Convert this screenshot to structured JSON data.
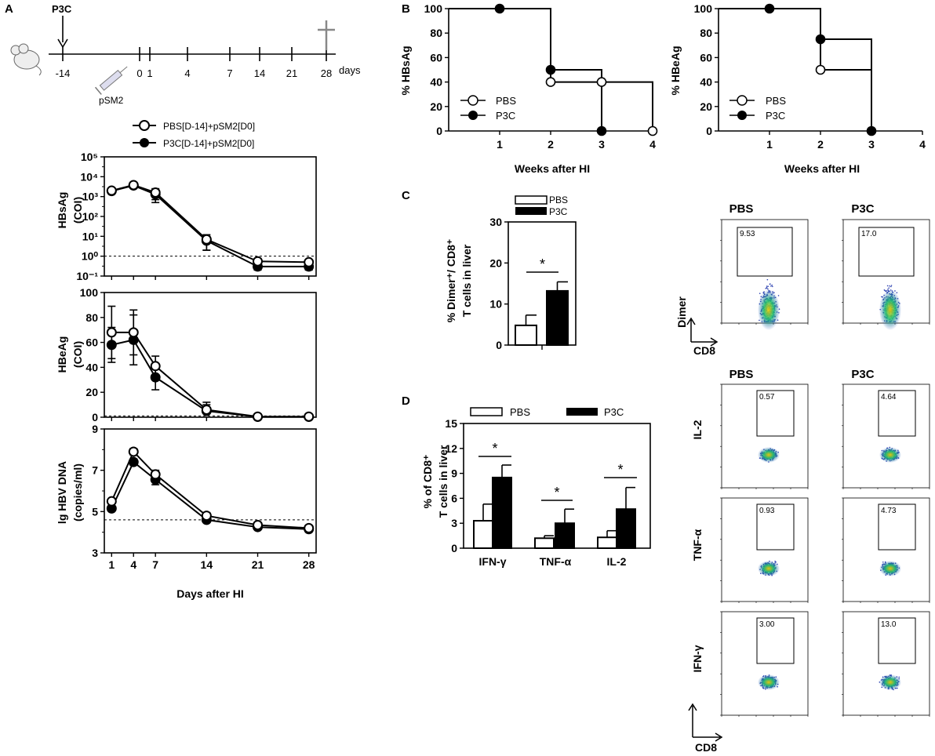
{
  "panels": {
    "A": "A",
    "B": "B",
    "C": "C",
    "D": "D"
  },
  "timeline": {
    "treatment": "P3C",
    "injection": "pSM2",
    "unit": "days",
    "ticks": [
      {
        "label": "-14",
        "day": -14
      },
      {
        "label": "0",
        "day": 0
      },
      {
        "label": "1",
        "day": 1
      },
      {
        "label": "4",
        "day": 4
      },
      {
        "label": "7",
        "day": 7
      },
      {
        "label": "14",
        "day": 14
      },
      {
        "label": "21",
        "day": 21
      },
      {
        "label": "28",
        "day": 28
      }
    ],
    "endpoint_day": 28
  },
  "text": {
    "a_legend_open": "PBS[D-14]+pSM2[D0]",
    "a_legend_filled": "P3C[D-14]+pSM2[D0]",
    "a1_ylabel_1": "HBsAg",
    "a1_ylabel_2": "(COI)",
    "a2_ylabel_1": "HBeAg",
    "a2_ylabel_2": "(COI)",
    "a3_ylabel_1": "lg HBV DNA",
    "a3_ylabel_2": "(copies/ml)",
    "a_xlabel": "Days after HI",
    "b1_ylabel": "% HBsAg",
    "b2_ylabel": "% HBeAg",
    "b_xlabel": "Weeks after HI",
    "legend_pbs": "PBS",
    "legend_p3c": "P3C",
    "c_ylabel_1": "% Dimer⁺/ CD8⁺",
    "c_ylabel_2": "T cells in liver",
    "d_ylabel_1": "% of CD8⁺",
    "d_ylabel_2": "T cells in liver",
    "sig": "*",
    "flow_pbs": "PBS",
    "flow_p3c": "P3C",
    "axis_dimer": "Dimer",
    "axis_cd8": "CD8",
    "axis_il2": "IL-2",
    "axis_tnf": "TNF-α",
    "axis_ifn": "IFN-γ"
  },
  "chart_data": [
    {
      "id": "A1",
      "type": "line",
      "title": "HBsAg (COI)",
      "yscale": "log",
      "x": [
        1,
        4,
        7,
        14,
        21,
        28
      ],
      "xlim": [
        0,
        29
      ],
      "ylim": [
        0.1,
        100000
      ],
      "yticks": [
        "10⁻¹",
        "10⁰",
        "10¹",
        "10²",
        "10³",
        "10⁴",
        "10⁵"
      ],
      "threshold": 1,
      "series": [
        {
          "name": "PBS[D-14]+pSM2[D0]",
          "marker": "open",
          "values": [
            2000,
            3800,
            1600,
            7,
            0.55,
            0.5
          ],
          "err": [
            300,
            500,
            900,
            5,
            0.2,
            0.15
          ]
        },
        {
          "name": "P3C[D-14]+pSM2[D0]",
          "marker": "filled",
          "values": [
            1900,
            3600,
            1300,
            6,
            0.3,
            0.3
          ],
          "err": [
            300,
            400,
            800,
            4,
            0.1,
            0.1
          ]
        }
      ]
    },
    {
      "id": "A2",
      "type": "line",
      "title": "HBeAg (COI)",
      "x": [
        1,
        4,
        7,
        14,
        21,
        28
      ],
      "xlim": [
        0,
        29
      ],
      "ylim": [
        0,
        100
      ],
      "yticks": [
        "0",
        "20",
        "40",
        "60",
        "80",
        "100"
      ],
      "threshold": 1,
      "series": [
        {
          "name": "PBS[D-14]+pSM2[D0]",
          "marker": "open",
          "values": [
            68,
            68,
            41,
            6,
            0.5,
            0.5
          ],
          "err": [
            21,
            18,
            8,
            6,
            0.5,
            0.5
          ]
        },
        {
          "name": "P3C[D-14]+pSM2[D0]",
          "marker": "filled",
          "values": [
            58,
            62,
            32,
            5,
            0.3,
            0.3
          ],
          "err": [
            14,
            20,
            10,
            5,
            0.3,
            0.3
          ]
        }
      ]
    },
    {
      "id": "A3",
      "type": "line",
      "title": "lg HBV DNA (copies/ml)",
      "x": [
        1,
        4,
        7,
        14,
        21,
        28
      ],
      "xlim": [
        0,
        29
      ],
      "ylim": [
        3,
        9
      ],
      "yticks": [
        "3",
        "5",
        "7",
        "9"
      ],
      "xticks": [
        "1",
        "4",
        "7",
        "14",
        "21",
        "28"
      ],
      "threshold": 4.6,
      "series": [
        {
          "name": "PBS[D-14]+pSM2[D0]",
          "marker": "open",
          "values": [
            5.5,
            7.9,
            6.8,
            4.8,
            4.35,
            4.2
          ],
          "err": [
            0.1,
            0.15,
            0.2,
            0.15,
            0.1,
            0.08
          ]
        },
        {
          "name": "P3C[D-14]+pSM2[D0]",
          "marker": "filled",
          "values": [
            5.15,
            7.4,
            6.55,
            4.6,
            4.25,
            4.15
          ],
          "err": [
            0.1,
            0.15,
            0.25,
            0.1,
            0.1,
            0.08
          ]
        }
      ]
    },
    {
      "id": "B1",
      "type": "line",
      "step": true,
      "title": "% HBsAg",
      "xlabel": "Weeks after HI",
      "xlim": [
        0,
        4
      ],
      "ylim": [
        0,
        100
      ],
      "xticks": [
        "1",
        "2",
        "3",
        "4"
      ],
      "yticks": [
        "0",
        "20",
        "40",
        "60",
        "80",
        "100"
      ],
      "series": [
        {
          "name": "PBS",
          "marker": "open",
          "steps": [
            [
              0,
              100
            ],
            [
              2,
              40
            ],
            [
              4,
              0
            ]
          ],
          "points": [
            [
              2,
              40
            ],
            [
              3,
              40
            ],
            [
              4,
              0
            ]
          ]
        },
        {
          "name": "P3C",
          "marker": "filled",
          "steps": [
            [
              0,
              100
            ],
            [
              2,
              50
            ],
            [
              3,
              0
            ]
          ],
          "points": [
            [
              1,
              100
            ],
            [
              2,
              50
            ],
            [
              3,
              0
            ]
          ]
        }
      ]
    },
    {
      "id": "B2",
      "type": "line",
      "step": true,
      "title": "% HBeAg",
      "xlabel": "Weeks after HI",
      "xlim": [
        0,
        4
      ],
      "ylim": [
        0,
        100
      ],
      "xticks": [
        "1",
        "2",
        "3",
        "4"
      ],
      "yticks": [
        "0",
        "20",
        "40",
        "60",
        "80",
        "100"
      ],
      "series": [
        {
          "name": "PBS",
          "marker": "open",
          "steps": [
            [
              0,
              100
            ],
            [
              2,
              50
            ],
            [
              3,
              0
            ]
          ],
          "points": [
            [
              2,
              50
            ]
          ]
        },
        {
          "name": "P3C",
          "marker": "filled",
          "steps": [
            [
              0,
              100
            ],
            [
              2,
              75
            ],
            [
              3,
              0
            ]
          ],
          "points": [
            [
              1,
              100
            ],
            [
              2,
              75
            ],
            [
              3,
              0
            ]
          ]
        }
      ]
    },
    {
      "id": "C",
      "type": "bar",
      "title": "% Dimer+/ CD8+ T cells in liver",
      "ylim": [
        0,
        30
      ],
      "yticks": [
        "0",
        "10",
        "20",
        "30"
      ],
      "series": [
        {
          "name": "PBS",
          "values": [
            4.8
          ],
          "err": [
            2.5
          ]
        },
        {
          "name": "P3C",
          "values": [
            13.2
          ],
          "err": [
            2.2
          ]
        }
      ]
    },
    {
      "id": "D",
      "type": "bar",
      "title": "% of CD8+ T cells in liver",
      "categories": [
        "IFN-γ",
        "TNF-α",
        "IL-2"
      ],
      "ylim": [
        0,
        15
      ],
      "yticks": [
        "0",
        "3",
        "6",
        "9",
        "12",
        "15"
      ],
      "series": [
        {
          "name": "PBS",
          "values": [
            3.3,
            1.2,
            1.3
          ],
          "err": [
            2.0,
            0.3,
            0.8
          ]
        },
        {
          "name": "P3C",
          "values": [
            8.5,
            3.0,
            4.7
          ],
          "err": [
            1.5,
            1.7,
            2.6
          ]
        }
      ]
    }
  ],
  "flow": [
    {
      "row": "Dimer",
      "pbs": "9.53",
      "p3c": "17.0"
    },
    {
      "row": "IL-2",
      "pbs": "0.57",
      "p3c": "4.64"
    },
    {
      "row": "TNF-α",
      "pbs": "0.93",
      "p3c": "4.73"
    },
    {
      "row": "IFN-γ",
      "pbs": "3.00",
      "p3c": "13.0"
    }
  ]
}
